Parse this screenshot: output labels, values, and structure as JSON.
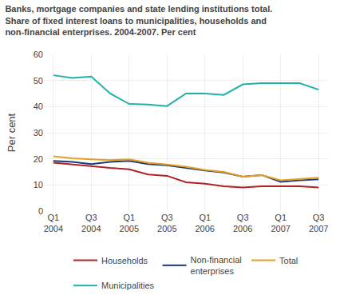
{
  "chart_data": {
    "type": "line",
    "title": "Banks, mortgage companies and state lending institutions total.\nShare of fixed interest loans to municipalities, households and\nnon-financial enterprises. 2004-2007. Per cent",
    "ylabel": "Per cent",
    "categories": [
      "Q1\n2004",
      null,
      "Q3\n2004",
      null,
      "Q1\n2005",
      null,
      "Q3\n2005",
      null,
      "Q1\n2006",
      null,
      "Q3\n2006",
      null,
      "Q1\n2007",
      null,
      "Q3\n2007"
    ],
    "series": [
      {
        "name": "Households",
        "color": "#b22222",
        "values": [
          18.5,
          17.8,
          17.2,
          16.5,
          16.0,
          14.0,
          13.5,
          11.0,
          10.5,
          9.5,
          9.0,
          9.5,
          9.5,
          9.5,
          9.0
        ]
      },
      {
        "name": "Non-financial\nenterprises",
        "color": "#1a3a7a",
        "values": [
          19.2,
          18.8,
          18.0,
          18.8,
          19.2,
          18.0,
          17.5,
          16.5,
          15.5,
          14.8,
          13.2,
          13.8,
          11.2,
          11.8,
          12.2
        ]
      },
      {
        "name": "Total",
        "color": "#e8a020",
        "values": [
          21.0,
          20.2,
          19.8,
          19.5,
          19.8,
          18.5,
          17.8,
          17.0,
          15.8,
          15.0,
          13.2,
          13.8,
          11.8,
          12.2,
          12.8
        ]
      },
      {
        "name": "Municipalities",
        "color": "#20b2aa",
        "values": [
          52.0,
          51.0,
          51.5,
          45.0,
          41.0,
          40.8,
          40.2,
          45.0,
          45.0,
          44.5,
          48.5,
          49.0,
          49.0,
          49.0,
          46.5
        ]
      }
    ],
    "ylim": [
      0,
      60
    ],
    "yticks": [
      0,
      10,
      20,
      30,
      40,
      50,
      60
    ],
    "grid": true,
    "legend": "bottom"
  }
}
